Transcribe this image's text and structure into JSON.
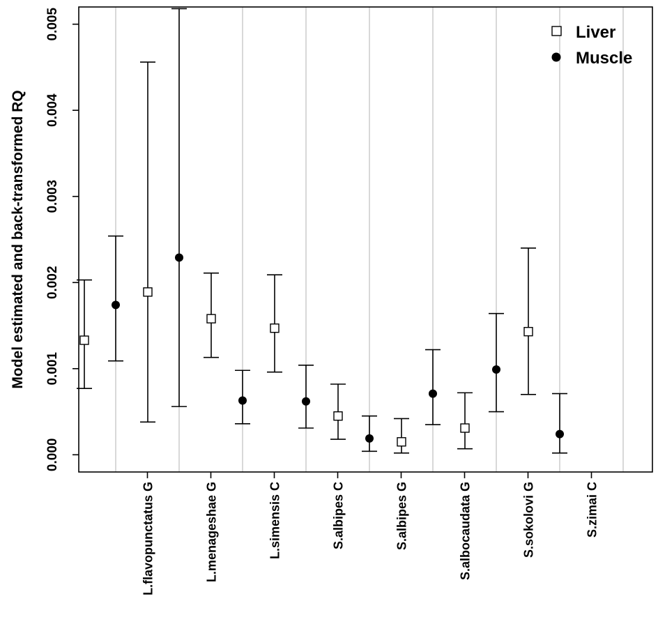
{
  "chart_data": {
    "type": "scatter",
    "ylabel": "Model estimated and back-transformed RQ",
    "xlabel": "",
    "ylim": [
      -0.0002,
      0.0052
    ],
    "yticks": [
      "0.000",
      "0.001",
      "0.002",
      "0.003",
      "0.004",
      "0.005"
    ],
    "categories": [
      "L.flavopunctatus G",
      "L.menageshae G",
      "L.simensis C",
      "S.albipes C",
      "S.albipes G",
      "S.albocaudata G",
      "S.sokolovi G",
      "S.zimai C"
    ],
    "grid": "vertical separators between categories",
    "legend_position": "top-right",
    "series": [
      {
        "name": "Liver",
        "marker": "open-square",
        "estimate": [
          0.00133,
          0.00189,
          0.00158,
          0.00147,
          0.00045,
          0.00015,
          0.00031,
          0.00143
        ],
        "lower": [
          0.00077,
          0.00038,
          0.00113,
          0.00096,
          0.00018,
          2e-05,
          7e-05,
          0.0007
        ],
        "upper": [
          0.00203,
          0.00456,
          0.00211,
          0.00209,
          0.00082,
          0.00042,
          0.00072,
          0.0024
        ]
      },
      {
        "name": "Muscle",
        "marker": "filled-circle",
        "estimate": [
          0.00174,
          0.00229,
          0.00063,
          0.00062,
          0.00019,
          0.00071,
          0.00099,
          0.00024
        ],
        "lower": [
          0.00109,
          0.00056,
          0.00036,
          0.00031,
          4e-05,
          0.00035,
          0.0005,
          2e-05
        ],
        "upper": [
          0.00254,
          0.00518,
          0.00098,
          0.00104,
          0.00045,
          0.00122,
          0.00164,
          0.00071
        ]
      }
    ]
  },
  "colors": {
    "axis": "#000000",
    "separator": "#c8c8c8",
    "errorbar": "#000000"
  }
}
